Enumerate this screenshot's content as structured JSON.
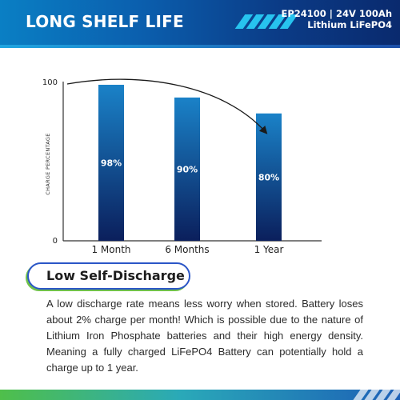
{
  "header": {
    "title": "LONG SHELF LIFE",
    "model": "EP24100 | 24V 100Ah",
    "chemistry": "Lithium LiFePO4"
  },
  "chart_data": {
    "type": "bar",
    "categories": [
      "1 Month",
      "6 Months",
      "1 Year"
    ],
    "values": [
      98,
      90,
      80
    ],
    "value_labels": [
      "98%",
      "90%",
      "80%"
    ],
    "ylabel": "CHARGE PERCENTAGE",
    "yticks": [
      "100",
      "0"
    ],
    "ylim": [
      0,
      100
    ],
    "grid": false,
    "trend_arrow": true
  },
  "section": {
    "heading": "Low Self-Discharge",
    "body": "A low discharge rate means less worry when stored. Battery loses about 2% charge per month! Which is possible due to the nature of Lithium Iron Phosphate batteries and their high energy density. Meaning a fully charged LiFePO4 Battery can potentially hold a charge up to 1 year."
  },
  "colors": {
    "header_start": "#0a7fc4",
    "header_end": "#0a2a6e",
    "bar_top": "#1a82c8",
    "bar_bottom": "#0b1f5c",
    "accent_green": "#6fc14a",
    "pill_border": "#2b56c7"
  }
}
